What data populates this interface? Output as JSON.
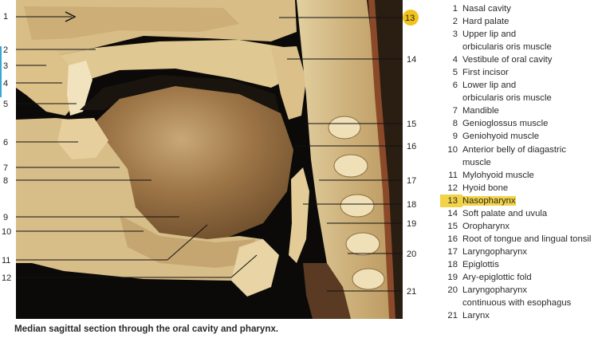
{
  "legend": [
    {
      "num": "1",
      "label": "Nasal cavity"
    },
    {
      "num": "2",
      "label": "Hard palate"
    },
    {
      "num": "3",
      "label": "Upper lip and\norbicularis oris muscle"
    },
    {
      "num": "4",
      "label": "Vestibule of oral cavity"
    },
    {
      "num": "5",
      "label": "First incisor"
    },
    {
      "num": "6",
      "label": "Lower lip and\norbicularis oris muscle"
    },
    {
      "num": "7",
      "label": "Mandible"
    },
    {
      "num": "8",
      "label": "Genioglossus muscle"
    },
    {
      "num": "9",
      "label": "Geniohyoid muscle"
    },
    {
      "num": "10",
      "label": "Anterior belly of diagastric muscle"
    },
    {
      "num": "11",
      "label": "Mylohyoid muscle"
    },
    {
      "num": "12",
      "label": "Hyoid bone"
    },
    {
      "num": "13",
      "label": "Nasopharynx",
      "highlight": true
    },
    {
      "num": "14",
      "label": "Soft palate and uvula"
    },
    {
      "num": "15",
      "label": "Oropharynx"
    },
    {
      "num": "16",
      "label": "Root of tongue and lingual tonsil"
    },
    {
      "num": "17",
      "label": "Laryngopharynx"
    },
    {
      "num": "18",
      "label": "Epiglottis"
    },
    {
      "num": "19",
      "label": "Ary-epiglottic fold"
    },
    {
      "num": "20",
      "label": "Laryngopharynx\ncontinuous with esophagus"
    },
    {
      "num": "21",
      "label": "Larynx"
    }
  ],
  "figure_numbers": {
    "left": [
      "1",
      "2",
      "3",
      "4",
      "5",
      "6",
      "7",
      "8",
      "9",
      "10",
      "11",
      "12"
    ],
    "right": [
      "13",
      "14",
      "15",
      "16",
      "17",
      "18",
      "19",
      "20",
      "21"
    ]
  },
  "colors": {
    "highlight": "#f2d347",
    "background": "#000000",
    "tissue": "#d9bf87"
  },
  "caption": "Median sagittal section through the oral cavity and pharynx."
}
